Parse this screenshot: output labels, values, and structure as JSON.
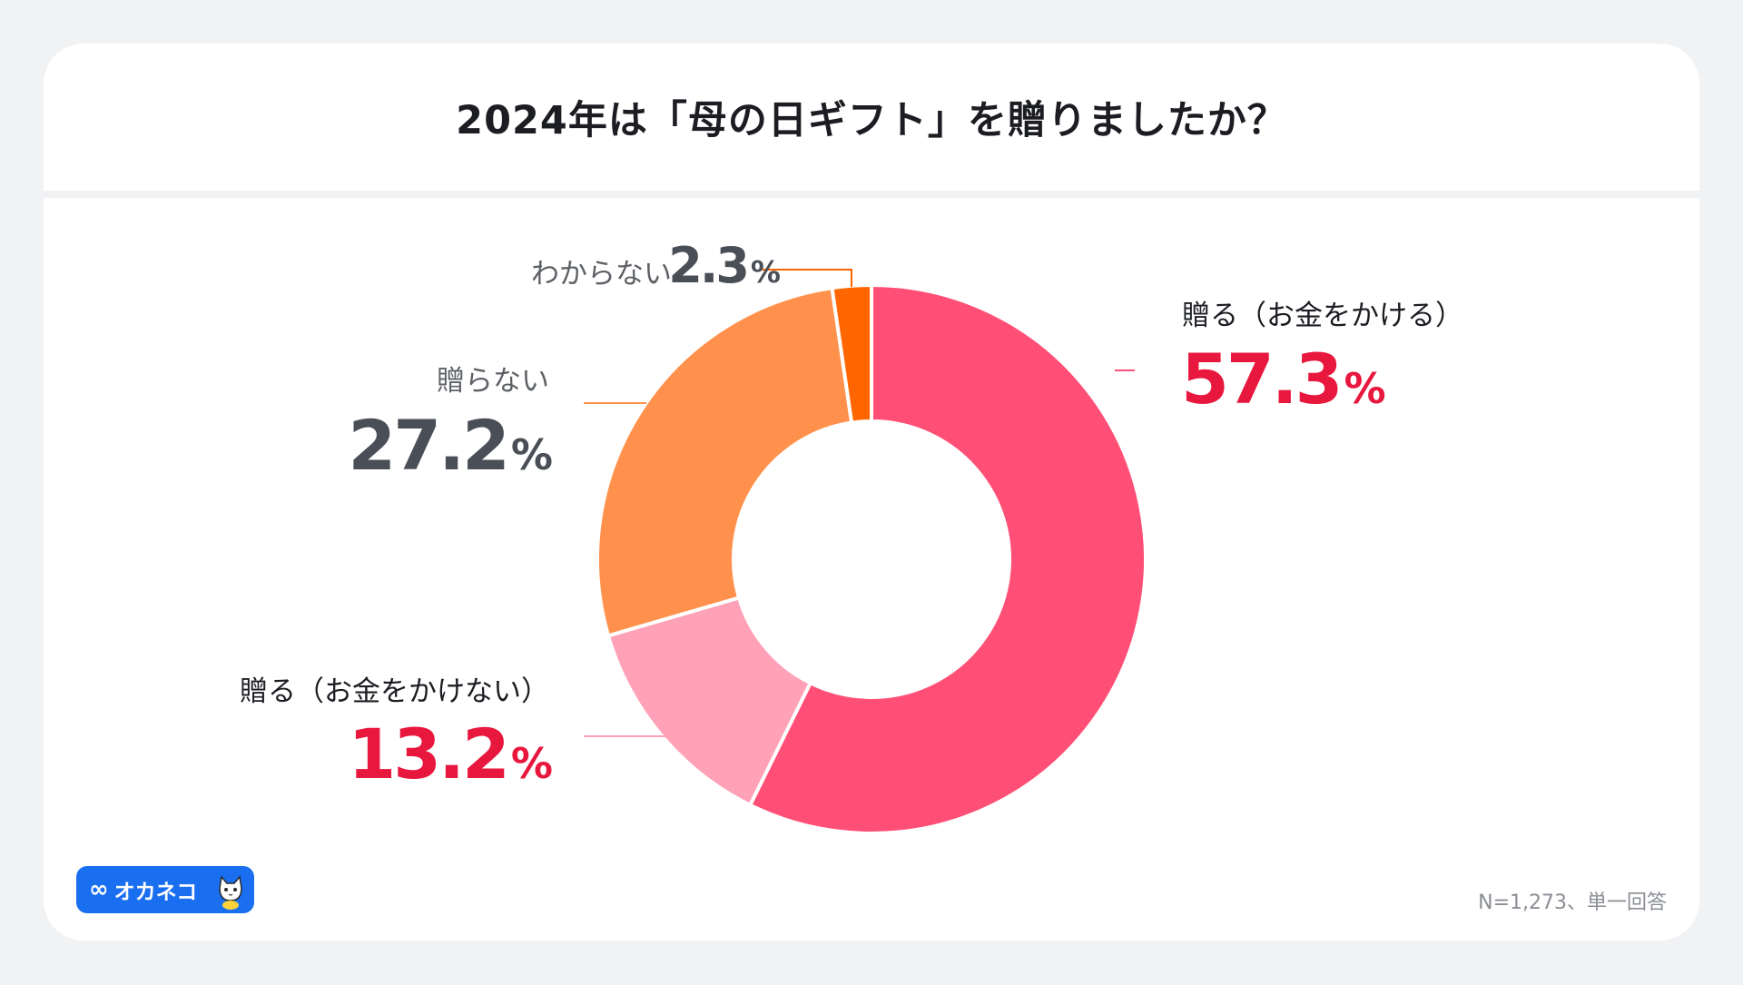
{
  "title": "2024年は「母の日ギフト」を贈りましたか？",
  "note": "N=1,273、単一回答",
  "logo": {
    "text": "オカネコ",
    "icon": "infinity-icon",
    "mascot": "cat-mascot-icon",
    "bg_color": "#1a6ff0"
  },
  "chart_data": {
    "type": "pie",
    "style": "donut",
    "start": "12 o'clock",
    "direction": "clockwise",
    "unit": "%",
    "slices": [
      {
        "label": "贈る（お金をかける）",
        "value": 57.3,
        "value_text": "57.3",
        "color": "#ff4f76"
      },
      {
        "label": "贈る（お金をかけない）",
        "value": 13.2,
        "value_text": "13.2",
        "color": "#ffa1b7"
      },
      {
        "label": "贈らない",
        "value": 27.2,
        "value_text": "27.2",
        "color": "#ff914d"
      },
      {
        "label": "わからない",
        "value": 2.3,
        "value_text": "2.3",
        "color": "#ff6600"
      }
    ]
  }
}
